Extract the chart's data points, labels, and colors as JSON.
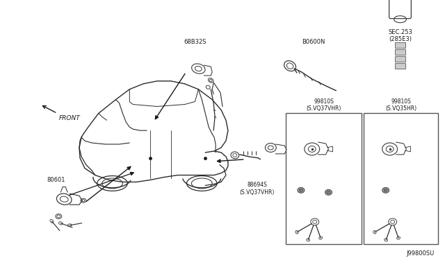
{
  "bg_color": "#f5f5f5",
  "diagram_number": "J99800SU",
  "fig_width": 6.4,
  "fig_height": 3.72,
  "dpi": 100,
  "labels": {
    "front_arrow": "FRONT",
    "part_80601": "80601",
    "part_68632S": "68B32S",
    "part_B0600N": "B0600N",
    "part_SEC253": "SEC.253\n(285E3)",
    "part_88694S": "88694S\n(S.VQ37VHR)",
    "part_99810S_VQ37": "99810S\n(S.VQ37VHR)",
    "part_99810S_VQ35": "99810S\n(S.VQ35HR)"
  },
  "text_color": "#1a1a1a",
  "line_color": "#2a2a2a",
  "component_color": "#3a3a3a"
}
